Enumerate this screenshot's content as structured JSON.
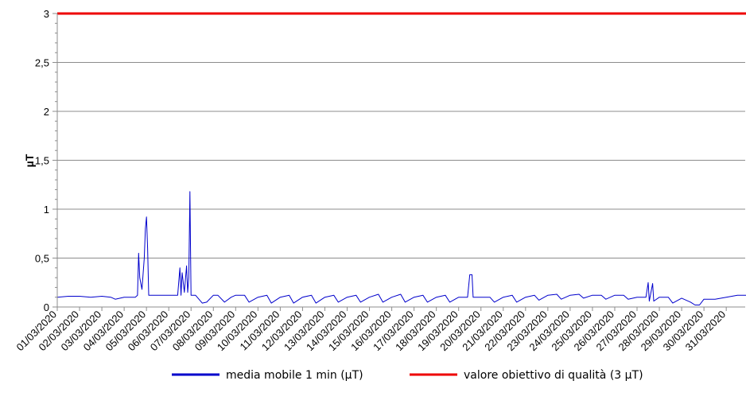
{
  "chart_data": {
    "type": "line",
    "title": "",
    "xlabel": "",
    "ylabel": "µT",
    "ylim": [
      0,
      3
    ],
    "yticks": [
      0,
      0.5,
      1,
      1.5,
      2,
      2.5,
      3
    ],
    "ytick_labels": [
      "0",
      "0,5",
      "1",
      "1,5",
      "2",
      "2,5",
      "3"
    ],
    "grid": true,
    "legend_position": "bottom",
    "categories": [
      "01/03/2020",
      "02/03/2020",
      "03/03/2020",
      "04/03/2020",
      "05/03/2020",
      "06/03/2020",
      "07/03/2020",
      "08/03/2020",
      "09/03/2020",
      "10/03/2020",
      "11/03/2020",
      "12/03/2020",
      "13/03/2020",
      "14/03/2020",
      "15/03/2020",
      "16/03/2020",
      "17/03/2020",
      "18/03/2020",
      "19/03/2020",
      "20/03/2020",
      "21/03/2020",
      "22/03/2020",
      "23/03/2020",
      "24/03/2020",
      "25/03/2020",
      "26/03/2020",
      "27/03/2020",
      "28/03/2020",
      "29/03/2020",
      "30/03/2020",
      "31/03/2020"
    ],
    "series": [
      {
        "name": "media mobile 1 min (µT)",
        "color": "#0000cc",
        "points": [
          [
            0.0,
            0.1
          ],
          [
            0.5,
            0.11
          ],
          [
            1.0,
            0.11
          ],
          [
            1.5,
            0.1
          ],
          [
            2.0,
            0.11
          ],
          [
            2.4,
            0.1
          ],
          [
            2.6,
            0.08
          ],
          [
            3.0,
            0.1
          ],
          [
            3.5,
            0.1
          ],
          [
            3.6,
            0.12
          ],
          [
            3.65,
            0.55
          ],
          [
            3.7,
            0.3
          ],
          [
            3.8,
            0.18
          ],
          [
            3.9,
            0.5
          ],
          [
            3.95,
            0.8
          ],
          [
            4.0,
            0.92
          ],
          [
            4.05,
            0.6
          ],
          [
            4.1,
            0.12
          ],
          [
            4.5,
            0.12
          ],
          [
            5.0,
            0.12
          ],
          [
            5.4,
            0.12
          ],
          [
            5.5,
            0.4
          ],
          [
            5.55,
            0.12
          ],
          [
            5.6,
            0.35
          ],
          [
            5.7,
            0.15
          ],
          [
            5.8,
            0.42
          ],
          [
            5.85,
            0.15
          ],
          [
            5.9,
            0.3
          ],
          [
            5.95,
            1.18
          ],
          [
            6.0,
            0.12
          ],
          [
            6.2,
            0.12
          ],
          [
            6.5,
            0.04
          ],
          [
            6.7,
            0.05
          ],
          [
            7.0,
            0.12
          ],
          [
            7.2,
            0.12
          ],
          [
            7.5,
            0.05
          ],
          [
            7.8,
            0.1
          ],
          [
            8.0,
            0.12
          ],
          [
            8.4,
            0.12
          ],
          [
            8.6,
            0.05
          ],
          [
            9.0,
            0.1
          ],
          [
            9.4,
            0.12
          ],
          [
            9.6,
            0.04
          ],
          [
            10.0,
            0.1
          ],
          [
            10.4,
            0.12
          ],
          [
            10.6,
            0.04
          ],
          [
            11.0,
            0.1
          ],
          [
            11.4,
            0.12
          ],
          [
            11.6,
            0.04
          ],
          [
            12.0,
            0.1
          ],
          [
            12.4,
            0.12
          ],
          [
            12.6,
            0.05
          ],
          [
            13.0,
            0.1
          ],
          [
            13.4,
            0.12
          ],
          [
            13.6,
            0.05
          ],
          [
            14.0,
            0.1
          ],
          [
            14.4,
            0.13
          ],
          [
            14.6,
            0.05
          ],
          [
            15.0,
            0.1
          ],
          [
            15.4,
            0.13
          ],
          [
            15.6,
            0.05
          ],
          [
            16.0,
            0.1
          ],
          [
            16.4,
            0.12
          ],
          [
            16.6,
            0.05
          ],
          [
            17.0,
            0.1
          ],
          [
            17.4,
            0.12
          ],
          [
            17.6,
            0.05
          ],
          [
            18.0,
            0.1
          ],
          [
            18.4,
            0.1
          ],
          [
            18.5,
            0.33
          ],
          [
            18.6,
            0.33
          ],
          [
            18.65,
            0.1
          ],
          [
            19.0,
            0.1
          ],
          [
            19.4,
            0.1
          ],
          [
            19.6,
            0.05
          ],
          [
            20.0,
            0.1
          ],
          [
            20.4,
            0.12
          ],
          [
            20.6,
            0.05
          ],
          [
            21.0,
            0.1
          ],
          [
            21.4,
            0.12
          ],
          [
            21.6,
            0.07
          ],
          [
            22.0,
            0.12
          ],
          [
            22.4,
            0.13
          ],
          [
            22.6,
            0.08
          ],
          [
            23.0,
            0.12
          ],
          [
            23.4,
            0.13
          ],
          [
            23.6,
            0.09
          ],
          [
            24.0,
            0.12
          ],
          [
            24.4,
            0.12
          ],
          [
            24.6,
            0.08
          ],
          [
            25.0,
            0.12
          ],
          [
            25.4,
            0.12
          ],
          [
            25.6,
            0.08
          ],
          [
            26.0,
            0.1
          ],
          [
            26.4,
            0.1
          ],
          [
            26.5,
            0.25
          ],
          [
            26.55,
            0.06
          ],
          [
            26.7,
            0.24
          ],
          [
            26.75,
            0.06
          ],
          [
            27.0,
            0.1
          ],
          [
            27.4,
            0.1
          ],
          [
            27.6,
            0.04
          ],
          [
            28.0,
            0.09
          ],
          [
            28.4,
            0.05
          ],
          [
            28.6,
            0.02
          ],
          [
            28.8,
            0.02
          ],
          [
            29.0,
            0.08
          ],
          [
            29.5,
            0.08
          ],
          [
            30.0,
            0.1
          ],
          [
            30.5,
            0.12
          ],
          [
            31.0,
            0.12
          ]
        ]
      },
      {
        "name": "valore obiettivo di qualità (3 µT)",
        "color": "#ee0000",
        "points": [
          [
            0.0,
            3
          ],
          [
            31.0,
            3
          ]
        ]
      }
    ]
  }
}
